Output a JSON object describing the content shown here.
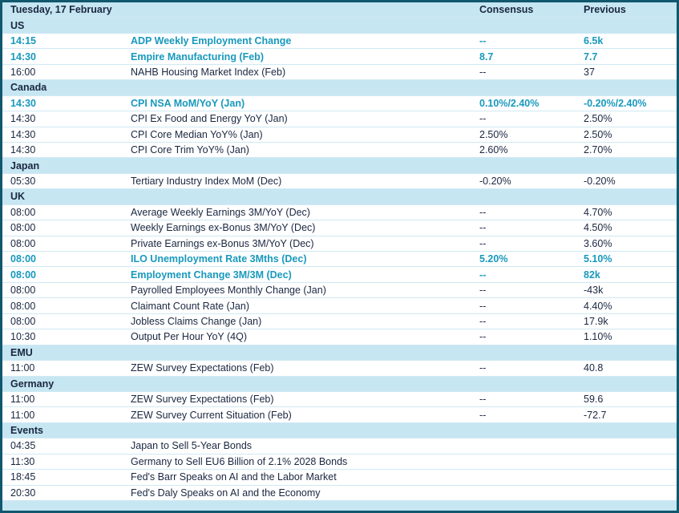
{
  "colors": {
    "header_bg": "#c6e6f2",
    "row_line": "#cfe9f3",
    "text": "#1a2740",
    "highlight": "#1899bd",
    "border": "#11576d",
    "bg": "#ffffff"
  },
  "table": {
    "title": "Tuesday, 17 February",
    "columns": {
      "consensus": "Consensus",
      "previous": "Previous"
    },
    "sections": [
      {
        "name": "US",
        "rows": [
          {
            "time": "14:15",
            "event": "ADP Weekly Employment Change",
            "consensus": "--",
            "previous": "6.5k",
            "highlight": true
          },
          {
            "time": "14:30",
            "event": "Empire Manufacturing (Feb)",
            "consensus": "8.7",
            "previous": "7.7",
            "highlight": true
          },
          {
            "time": "16:00",
            "event": "NAHB Housing Market Index (Feb)",
            "consensus": "--",
            "previous": "37",
            "highlight": false
          }
        ]
      },
      {
        "name": "Canada",
        "rows": [
          {
            "time": "14:30",
            "event": "CPI NSA MoM/YoY (Jan)",
            "consensus": "0.10%/2.40%",
            "previous": "-0.20%/2.40%",
            "highlight": true
          },
          {
            "time": "14:30",
            "event": "CPI Ex Food and Energy YoY (Jan)",
            "consensus": "--",
            "previous": "2.50%",
            "highlight": false
          },
          {
            "time": "14:30",
            "event": "CPI Core Median YoY% (Jan)",
            "consensus": "2.50%",
            "previous": "2.50%",
            "highlight": false
          },
          {
            "time": "14:30",
            "event": "CPI Core Trim YoY% (Jan)",
            "consensus": "2.60%",
            "previous": "2.70%",
            "highlight": false
          }
        ]
      },
      {
        "name": "Japan",
        "rows": [
          {
            "time": "05:30",
            "event": "Tertiary Industry Index MoM (Dec)",
            "consensus": "-0.20%",
            "previous": "-0.20%",
            "highlight": false
          }
        ]
      },
      {
        "name": "UK",
        "rows": [
          {
            "time": "08:00",
            "event": "Average Weekly Earnings 3M/YoY (Dec)",
            "consensus": "--",
            "previous": "4.70%",
            "highlight": false
          },
          {
            "time": "08:00",
            "event": "Weekly Earnings ex-Bonus 3M/YoY (Dec)",
            "consensus": "--",
            "previous": "4.50%",
            "highlight": false
          },
          {
            "time": "08:00",
            "event": "Private Earnings ex-Bonus 3M/YoY (Dec)",
            "consensus": "--",
            "previous": "3.60%",
            "highlight": false
          },
          {
            "time": "08:00",
            "event": "ILO Unemployment Rate 3Mths (Dec)",
            "consensus": "5.20%",
            "previous": "5.10%",
            "highlight": true
          },
          {
            "time": "08:00",
            "event": "Employment Change 3M/3M (Dec)",
            "consensus": "--",
            "previous": "82k",
            "highlight": true
          },
          {
            "time": "08:00",
            "event": "Payrolled Employees Monthly Change (Jan)",
            "consensus": "--",
            "previous": "-43k",
            "highlight": false
          },
          {
            "time": "08:00",
            "event": "Claimant Count Rate (Jan)",
            "consensus": "--",
            "previous": "4.40%",
            "highlight": false
          },
          {
            "time": "08:00",
            "event": "Jobless Claims Change (Jan)",
            "consensus": "--",
            "previous": "17.9k",
            "highlight": false
          },
          {
            "time": "10:30",
            "event": "Output Per Hour YoY (4Q)",
            "consensus": "--",
            "previous": "1.10%",
            "highlight": false
          }
        ]
      },
      {
        "name": "EMU",
        "rows": [
          {
            "time": "11:00",
            "event": "ZEW Survey Expectations (Feb)",
            "consensus": "--",
            "previous": "40.8",
            "highlight": false
          }
        ]
      },
      {
        "name": "Germany",
        "rows": [
          {
            "time": "11:00",
            "event": "ZEW Survey Expectations (Feb)",
            "consensus": "--",
            "previous": "59.6",
            "highlight": false
          },
          {
            "time": "11:00",
            "event": "ZEW Survey Current Situation (Feb)",
            "consensus": "--",
            "previous": "-72.7",
            "highlight": false
          }
        ]
      },
      {
        "name": "Events",
        "rows": [
          {
            "time": "04:35",
            "event": "Japan to Sell 5-Year Bonds",
            "consensus": "",
            "previous": "",
            "highlight": false
          },
          {
            "time": "11:30",
            "event": "Germany to Sell EU6 Billion of 2.1% 2028 Bonds",
            "consensus": "",
            "previous": "",
            "highlight": false
          },
          {
            "time": "18:45",
            "event": "Fed's Barr Speaks on AI and the Labor Market",
            "consensus": "",
            "previous": "",
            "highlight": false
          },
          {
            "time": "20:30",
            "event": "Fed's Daly Speaks on AI and the Economy",
            "consensus": "",
            "previous": "",
            "highlight": false
          }
        ]
      }
    ]
  }
}
